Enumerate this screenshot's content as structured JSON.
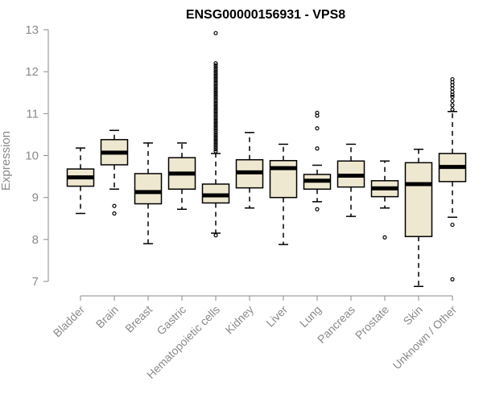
{
  "chart_data": {
    "type": "boxplot",
    "title": "ENSG00000156931 - VPS8",
    "ylabel": "Expression",
    "xlabel": "",
    "ylim": [
      7,
      13
    ],
    "yticks": [
      7,
      8,
      9,
      10,
      11,
      12,
      13
    ],
    "categories": [
      "Bladder",
      "Brain",
      "Breast",
      "Gastric",
      "Hematopoietic cells",
      "Kidney",
      "Liver",
      "Lung",
      "Pancreas",
      "Prostate",
      "Skin",
      "Unknown / Other"
    ],
    "boxes": [
      {
        "name": "Bladder",
        "whisker_low": 8.62,
        "q1": 9.27,
        "median": 9.48,
        "q3": 9.68,
        "whisker_high": 10.18,
        "outliers": []
      },
      {
        "name": "Brain",
        "whisker_low": 9.2,
        "q1": 9.78,
        "median": 10.07,
        "q3": 10.38,
        "whisker_high": 10.6,
        "outliers": [
          8.62,
          8.8
        ]
      },
      {
        "name": "Breast",
        "whisker_low": 7.9,
        "q1": 8.85,
        "median": 9.13,
        "q3": 9.57,
        "whisker_high": 10.3,
        "outliers": []
      },
      {
        "name": "Gastric",
        "whisker_low": 8.72,
        "q1": 9.2,
        "median": 9.57,
        "q3": 9.95,
        "whisker_high": 10.3,
        "outliers": []
      },
      {
        "name": "Hematopoietic cells",
        "whisker_low": 8.15,
        "q1": 8.87,
        "median": 9.05,
        "q3": 9.32,
        "whisker_high": 10.05,
        "outliers": [
          8.1,
          10.1,
          10.15,
          10.2,
          10.25,
          10.3,
          10.35,
          10.4,
          10.45,
          10.5,
          10.55,
          10.6,
          10.65,
          10.7,
          10.75,
          10.8,
          10.85,
          10.9,
          10.95,
          11.0,
          11.05,
          11.1,
          11.15,
          11.2,
          11.25,
          11.3,
          11.35,
          11.4,
          11.45,
          11.5,
          11.55,
          11.6,
          11.65,
          11.7,
          11.75,
          11.8,
          11.85,
          11.9,
          11.95,
          12.0,
          12.05,
          12.1,
          12.15,
          12.2,
          12.92
        ]
      },
      {
        "name": "Kidney",
        "whisker_low": 8.75,
        "q1": 9.23,
        "median": 9.6,
        "q3": 9.9,
        "whisker_high": 10.55,
        "outliers": []
      },
      {
        "name": "Liver",
        "whisker_low": 7.88,
        "q1": 9.0,
        "median": 9.7,
        "q3": 9.88,
        "whisker_high": 10.27,
        "outliers": []
      },
      {
        "name": "Lung",
        "whisker_low": 8.9,
        "q1": 9.2,
        "median": 9.4,
        "q3": 9.55,
        "whisker_high": 9.77,
        "outliers": [
          8.72,
          10.17,
          10.65,
          10.95,
          11.02
        ]
      },
      {
        "name": "Pancreas",
        "whisker_low": 8.55,
        "q1": 9.25,
        "median": 9.52,
        "q3": 9.87,
        "whisker_high": 10.27,
        "outliers": []
      },
      {
        "name": "Prostate",
        "whisker_low": 8.75,
        "q1": 9.02,
        "median": 9.22,
        "q3": 9.4,
        "whisker_high": 9.87,
        "outliers": [
          8.05
        ]
      },
      {
        "name": "Skin",
        "whisker_low": 6.88,
        "q1": 8.07,
        "median": 9.32,
        "q3": 9.83,
        "whisker_high": 10.15,
        "outliers": []
      },
      {
        "name": "Unknown / Other",
        "whisker_low": 8.53,
        "q1": 9.38,
        "median": 9.73,
        "q3": 10.05,
        "whisker_high": 11.05,
        "outliers": [
          7.05,
          8.35,
          11.1,
          11.2,
          11.3,
          11.4,
          11.45,
          11.52,
          11.6,
          11.68,
          11.75,
          11.82
        ]
      }
    ],
    "box_color": "#efe8d0",
    "line_color": "#000000",
    "axis_color": "#8a8a8a",
    "grid": false,
    "legend": "none"
  }
}
